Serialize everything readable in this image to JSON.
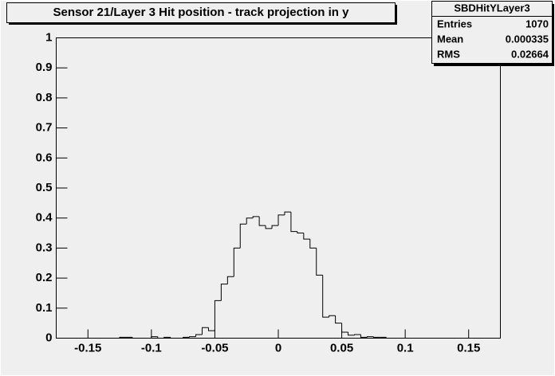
{
  "chart_data": {
    "type": "histogram",
    "title": "Sensor 21/Layer 3 Hit position - track projection in y",
    "bins": [
      -0.175,
      -0.17,
      -0.165,
      -0.16,
      -0.155,
      -0.15,
      -0.145,
      -0.14,
      -0.135,
      -0.13,
      -0.125,
      -0.12,
      -0.115,
      -0.11,
      -0.105,
      -0.1,
      -0.095,
      -0.09,
      -0.085,
      -0.08,
      -0.075,
      -0.07,
      -0.065,
      -0.06,
      -0.055,
      -0.05,
      -0.045,
      -0.04,
      -0.035,
      -0.03,
      -0.025,
      -0.02,
      -0.015,
      -0.01,
      -0.005,
      0,
      0.005,
      0.01,
      0.015,
      0.02,
      0.025,
      0.03,
      0.035,
      0.04,
      0.045,
      0.05,
      0.055,
      0.06,
      0.065,
      0.07,
      0.075,
      0.08,
      0.085,
      0.09,
      0.095,
      0.1,
      0.105,
      0.11,
      0.115,
      0.12,
      0.125,
      0.13,
      0.135,
      0.14,
      0.145,
      0.15,
      0.155,
      0.16,
      0.165,
      0.17,
      0.175
    ],
    "values": [
      0,
      0,
      0,
      0,
      0,
      0,
      0,
      0,
      0,
      0,
      0.003,
      0.003,
      0,
      0,
      0,
      0.005,
      0,
      0.003,
      0,
      0,
      0.003,
      0.005,
      0.012,
      0.035,
      0.025,
      0.125,
      0.18,
      0.205,
      0.3,
      0.38,
      0.4,
      0.405,
      0.375,
      0.365,
      0.375,
      0.41,
      0.42,
      0.355,
      0.35,
      0.33,
      0.3,
      0.21,
      0.07,
      0.075,
      0.05,
      0.02,
      0.01,
      0.012,
      0.003,
      0.005,
      0.003,
      0.003,
      0,
      0,
      0,
      0,
      0,
      0,
      0,
      0,
      0,
      0,
      0,
      0,
      0,
      0,
      0,
      0,
      0,
      0
    ],
    "color": "#000000",
    "xlim": [
      -0.175,
      0.175
    ],
    "xticks": [
      -0.15,
      -0.1,
      -0.05,
      0,
      0.05,
      0.1,
      0.15
    ],
    "ylim": [
      0,
      1
    ],
    "yticks": [
      0,
      0.1,
      0.2,
      0.3,
      0.4,
      0.5,
      0.6,
      0.7,
      0.8,
      0.9,
      1
    ],
    "stats": {
      "title": "SBDHitYLayer3",
      "rows": [
        {
          "label": "Entries",
          "value": 1070
        },
        {
          "label": "Mean",
          "value": 0.000335
        },
        {
          "label": "RMS",
          "value": 0.02664
        }
      ]
    }
  }
}
